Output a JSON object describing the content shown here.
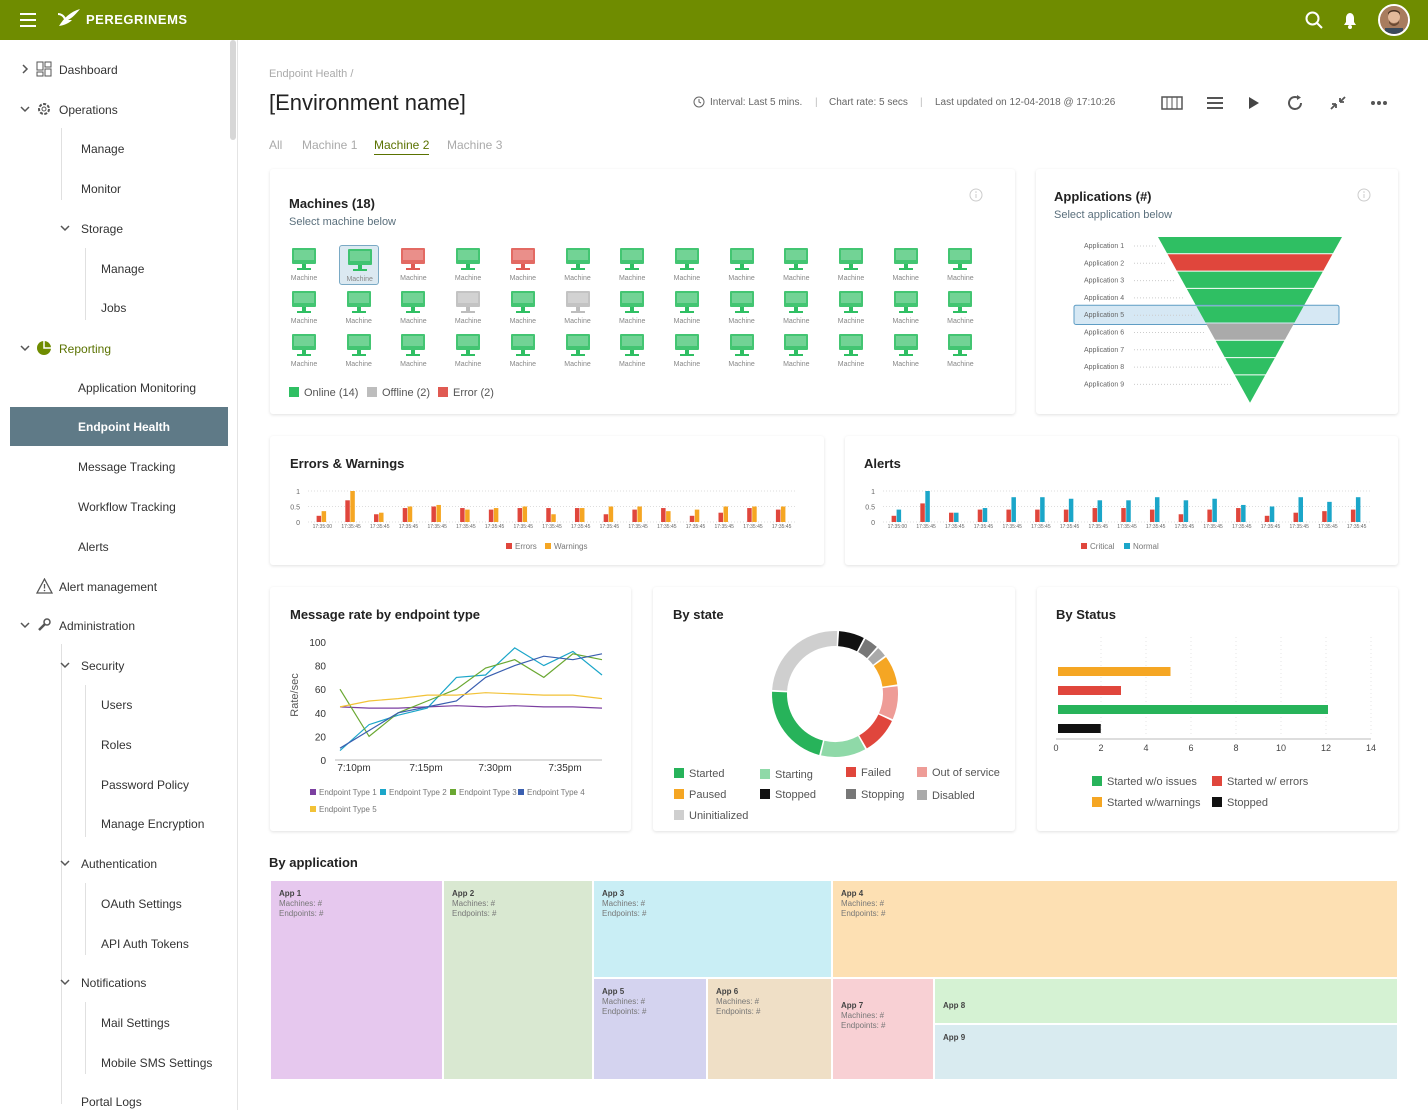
{
  "app": {
    "brand": "PEREGRINEMS"
  },
  "sidebar": {
    "dashboard": "Dashboard",
    "operations": "Operations",
    "manage": "Manage",
    "monitor": "Monitor",
    "storage": "Storage",
    "storage_manage": "Manage",
    "jobs": "Jobs",
    "reporting": "Reporting",
    "application_monitoring": "Application Monitoring",
    "endpoint_health": "Endpoint Health",
    "message_tracking": "Message Tracking",
    "workflow_tracking": "Workflow Tracking",
    "alerts": "Alerts",
    "alert_management": "Alert management",
    "administration": "Administration",
    "security": "Security",
    "users": "Users",
    "roles": "Roles",
    "password_policy": "Password Policy",
    "manage_encryption": "Manage Encryption",
    "authentication": "Authentication",
    "oauth_settings": "OAuth Settings",
    "api_auth_tokens": "API Auth Tokens",
    "notifications": "Notifications",
    "mail_settings": "Mail Settings",
    "mobile_sms_settings": "Mobile SMS Settings",
    "portal_logs": "Portal Logs"
  },
  "header": {
    "breadcrumb": "Endpoint Health /",
    "title": "[Environment name]",
    "interval": "Interval: Last 5 mins.",
    "chart_rate": "Chart rate: 5 secs",
    "last_updated": "Last updated on 12-04-2018 @ 17:10:26"
  },
  "tabs": [
    "All",
    "Machine 1",
    "Machine 2",
    "Machine 3"
  ],
  "machines_card": {
    "title": "Machines (18)",
    "subtitle": "Select machine below",
    "machine_label": "Machine",
    "legend": {
      "online": "Online (14)",
      "offline": "Offline (2)",
      "error": "Error (2)"
    },
    "colors": {
      "online": "#2fbf63",
      "offline": "#bdbdbd",
      "error": "#e05a52"
    }
  },
  "applications_card": {
    "title": "Applications (#)",
    "subtitle": "Select application below",
    "apps": [
      "Application 1",
      "Application 2",
      "Application 3",
      "Application 4",
      "Application 5",
      "Application 6",
      "Application 7",
      "Application 8",
      "Application 9"
    ]
  },
  "errors_card": {
    "title": "Errors & Warnings",
    "y_ticks": [
      "1",
      "0.5",
      "0"
    ],
    "x_ticks": [
      "17:35:00",
      "17:35:45",
      "17:35:45",
      "17:35:45",
      "17:35:45",
      "17:35:45",
      "17:35:45",
      "17:35:45",
      "17:35:45",
      "17:35:45",
      "17:35:45",
      "17:35:45",
      "17:35:45",
      "17:35:45",
      "17:35:45",
      "17:35:45",
      "17:35:45"
    ],
    "legend": {
      "a": "Errors",
      "b": "Warnings"
    },
    "colors": {
      "a": "#e0463c",
      "b": "#f5a623"
    }
  },
  "alerts_card": {
    "title": "Alerts",
    "y_ticks": [
      "1",
      "0.5",
      "0"
    ],
    "x_ticks": [
      "17:35:00",
      "17:35:45",
      "17:35:45",
      "17:35:45",
      "17:35:45",
      "17:35:45",
      "17:35:45",
      "17:35:45",
      "17:35:45",
      "17:35:45",
      "17:35:45",
      "17:35:45",
      "17:35:45",
      "17:35:45",
      "17:35:45",
      "17:35:45",
      "17:35:45"
    ],
    "legend": {
      "a": "Critical",
      "b": "Normal"
    },
    "colors": {
      "a": "#e0463c",
      "b": "#1ba6c9"
    }
  },
  "message_rate_card": {
    "title": "Message rate by endpoint type",
    "ylabel": "Rate/sec",
    "y_ticks": [
      "100",
      "80",
      "60",
      "40",
      "20",
      "0"
    ],
    "x_ticks": [
      "7:10pm",
      "7:15pm",
      "7:30pm",
      "7:35pm"
    ],
    "legend": [
      "Endpoint Type 1",
      "Endpoint Type 2",
      "Endpoint Type 3",
      "Endpoint Type 4",
      "Endpoint Type 5"
    ]
  },
  "by_state_card": {
    "title": "By state",
    "legend": [
      "Started",
      "Starting",
      "Failed",
      "Out of service",
      "Paused",
      "Stopped",
      "Stopping",
      "Disabled",
      "Uninitialized"
    ]
  },
  "by_status_card": {
    "title": "By Status",
    "x_ticks": [
      "0",
      "2",
      "4",
      "6",
      "8",
      "10",
      "12",
      "14"
    ],
    "legend": [
      "Started w/o issues",
      "Started w/ errors",
      "Started w/warnings",
      "Stopped"
    ]
  },
  "by_application": {
    "title": "By application",
    "machines_label": "Machines: #",
    "endpoints_label": "Endpoints: #",
    "apps": [
      "App 1",
      "App 2",
      "App 3",
      "App 4",
      "App 5",
      "App 6",
      "App 7",
      "App 8",
      "App 9"
    ]
  },
  "chart_data": [
    {
      "type": "bar",
      "title": "Errors & Warnings",
      "ylim": [
        0,
        1
      ],
      "series": [
        {
          "name": "Errors",
          "values": [
            0.2,
            0.7,
            0.25,
            0.45,
            0.5,
            0.45,
            0.4,
            0.45,
            0.45,
            0.45,
            0.25,
            0.4,
            0.45,
            0.2,
            0.3,
            0.45,
            0.4
          ]
        },
        {
          "name": "Warnings",
          "values": [
            0.35,
            1.0,
            0.3,
            0.5,
            0.55,
            0.4,
            0.45,
            0.5,
            0.25,
            0.45,
            0.5,
            0.5,
            0.35,
            0.4,
            0.5,
            0.5,
            0.5
          ]
        }
      ]
    },
    {
      "type": "bar",
      "title": "Alerts",
      "ylim": [
        0,
        1
      ],
      "series": [
        {
          "name": "Critical",
          "values": [
            0.2,
            0.6,
            0.3,
            0.4,
            0.4,
            0.4,
            0.4,
            0.45,
            0.45,
            0.4,
            0.25,
            0.4,
            0.45,
            0.2,
            0.3,
            0.35,
            0.4
          ]
        },
        {
          "name": "Normal",
          "values": [
            0.4,
            1.0,
            0.3,
            0.45,
            0.8,
            0.8,
            0.75,
            0.7,
            0.7,
            0.8,
            0.7,
            0.75,
            0.55,
            0.5,
            0.8,
            0.65,
            0.8
          ]
        }
      ]
    },
    {
      "type": "line",
      "title": "Message rate by endpoint type",
      "ylabel": "Rate/sec",
      "ylim": [
        0,
        100
      ],
      "series": [
        {
          "name": "Endpoint Type 1",
          "color": "#7b3fa0",
          "values": [
            45,
            44,
            44,
            45,
            46,
            45,
            46,
            45,
            45,
            44
          ]
        },
        {
          "name": "Endpoint Type 2",
          "color": "#1ba6c9",
          "values": [
            8,
            30,
            38,
            44,
            70,
            72,
            95,
            80,
            92,
            72
          ]
        },
        {
          "name": "Endpoint Type 3",
          "color": "#6aa832",
          "values": [
            60,
            20,
            40,
            50,
            60,
            78,
            85,
            70,
            90,
            85
          ]
        },
        {
          "name": "Endpoint Type 4",
          "color": "#3a5fb0",
          "values": [
            10,
            25,
            40,
            45,
            50,
            70,
            80,
            88,
            85,
            90
          ]
        },
        {
          "name": "Endpoint Type 5",
          "color": "#f2c237",
          "values": [
            45,
            50,
            52,
            55,
            55,
            57,
            56,
            55,
            55,
            52
          ]
        }
      ]
    },
    {
      "type": "pie",
      "title": "By state",
      "series": [
        {
          "name": "Started",
          "value": 22,
          "color": "#27b35a"
        },
        {
          "name": "Starting",
          "value": 12,
          "color": "#8fd9a8"
        },
        {
          "name": "Failed",
          "value": 10,
          "color": "#e0463c"
        },
        {
          "name": "Out of service",
          "value": 9,
          "color": "#ee9c97"
        },
        {
          "name": "Paused",
          "value": 8,
          "color": "#f5a623"
        },
        {
          "name": "Stopped",
          "value": 7,
          "color": "#111111"
        },
        {
          "name": "Stopping",
          "value": 4,
          "color": "#777777"
        },
        {
          "name": "Disabled",
          "value": 3,
          "color": "#aaaaaa"
        },
        {
          "name": "Uninitialized",
          "value": 25,
          "color": "#cfcfcf"
        }
      ]
    },
    {
      "type": "bar",
      "title": "By Status",
      "orientation": "horizontal",
      "xlim": [
        0,
        14
      ],
      "series": [
        {
          "name": "Started w/warnings",
          "value": 5,
          "color": "#f5a623"
        },
        {
          "name": "Started w/ errors",
          "value": 2.8,
          "color": "#e0463c"
        },
        {
          "name": "Started w/o issues",
          "value": 12,
          "color": "#27b35a"
        },
        {
          "name": "Stopped",
          "value": 1.9,
          "color": "#111111"
        }
      ]
    }
  ]
}
